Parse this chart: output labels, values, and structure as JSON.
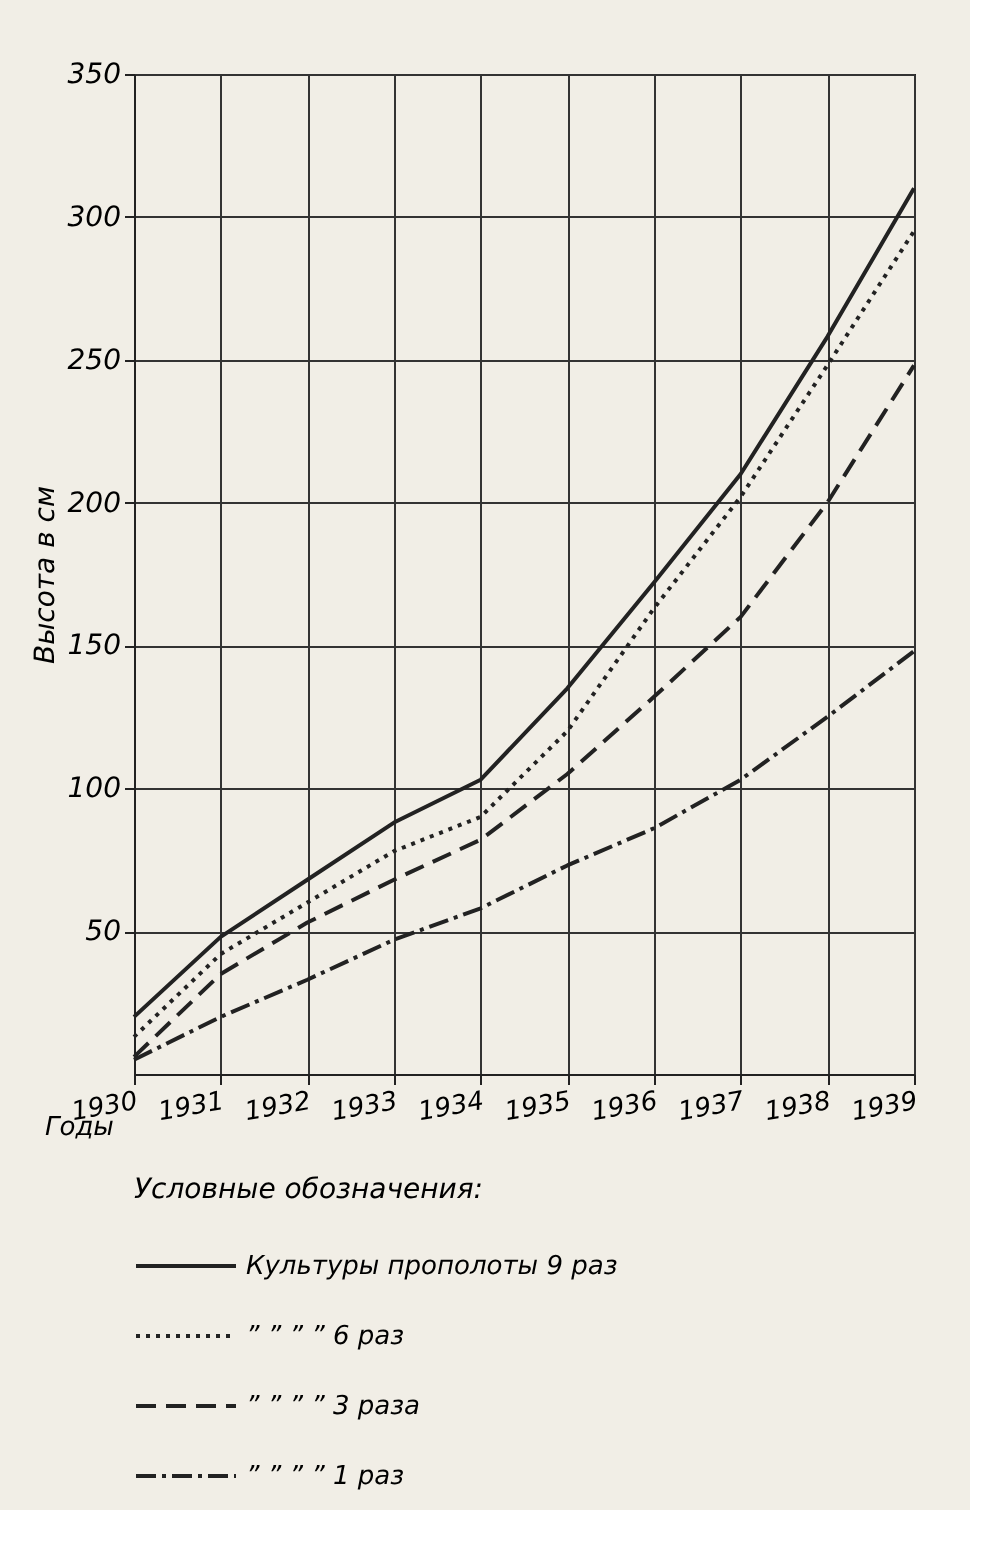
{
  "chart_data": {
    "type": "line",
    "xlabel": "Годы",
    "ylabel": "Высота в см",
    "legend_title": "Условные обозначения:",
    "categories": [
      "1930",
      "1931",
      "1932",
      "1933",
      "1934",
      "1935",
      "1936",
      "1937",
      "1938",
      "1939"
    ],
    "ylim": [
      0,
      350
    ],
    "yticks": [
      50,
      100,
      150,
      200,
      250,
      300,
      350
    ],
    "grid": true,
    "legend": "bottom",
    "marker": "none",
    "series": [
      {
        "name": "Культуры прополоты 9 раз",
        "color": "#222222",
        "line_style": "solid",
        "values": [
          20,
          48,
          68,
          88,
          103,
          135,
          172,
          210,
          258,
          310
        ]
      },
      {
        "name": "” ” ” ” 6 раз",
        "color": "#222222",
        "line_style": "dotted",
        "values": [
          13,
          42,
          60,
          78,
          90,
          120,
          163,
          202,
          248,
          295
        ]
      },
      {
        "name": "” ” ” ” 3 раза",
        "color": "#222222",
        "line_style": "dashed",
        "values": [
          6,
          35,
          53,
          68,
          82,
          105,
          132,
          160,
          200,
          248
        ]
      },
      {
        "name": "” ” ” ” 1 раз",
        "color": "#222222",
        "line_style": "dashdot",
        "values": [
          5,
          20,
          33,
          47,
          58,
          73,
          86,
          103,
          125,
          148
        ]
      }
    ]
  }
}
